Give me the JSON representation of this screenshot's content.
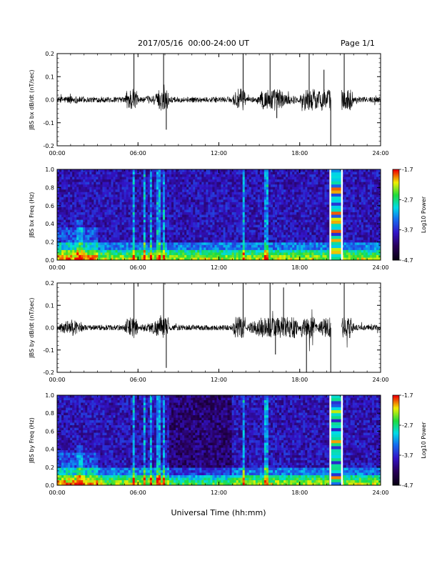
{
  "header": {
    "title": "2017/05/16  00:00-24:00 UT",
    "page": "Page 1/1"
  },
  "x_axis_title": "Universal Time (hh:mm)",
  "chart_data": [
    {
      "type": "line",
      "ylabel": "JBS bx dB/dt (nT/sec)",
      "xlim": [
        0,
        24
      ],
      "ylim": [
        -0.2,
        0.2
      ],
      "x_ticks": [
        "00:00",
        "06:00",
        "12:00",
        "18:00",
        "24:00"
      ],
      "y_ticks": [
        "0.2",
        "0.1",
        "0.0",
        "-0.1",
        "-0.2"
      ],
      "series": [
        {
          "x": [
            0,
            1,
            2,
            3,
            4,
            5,
            5.7,
            6,
            7,
            7.5,
            7.9,
            8.1,
            8.3,
            9,
            10,
            11,
            12,
            13,
            13.8,
            14,
            15,
            15.8,
            16.3,
            17,
            18,
            18.7,
            19.3,
            19.8,
            20.3,
            20.8,
            21.3,
            22,
            23,
            24
          ],
          "y": [
            0.0,
            0.01,
            0.0,
            0.0,
            0.0,
            0.0,
            0.2,
            0.0,
            0.01,
            0.03,
            0.2,
            -0.13,
            0.0,
            0.0,
            0.0,
            0.0,
            0.0,
            0.0,
            0.2,
            0.0,
            0.0,
            0.2,
            -0.08,
            0.02,
            0.0,
            0.2,
            0.03,
            0.13,
            -0.2,
            -0.02,
            0.2,
            0.0,
            0.0,
            0.0
          ]
        }
      ]
    },
    {
      "type": "heatmap",
      "ylabel": "JBS bx Freq (Hz)",
      "xlim": [
        0,
        24
      ],
      "ylim": [
        0.0,
        1.0
      ],
      "x_ticks": [
        "00:00",
        "06:00",
        "12:00",
        "18:00",
        "24:00"
      ],
      "y_ticks": [
        "1.0",
        "0.8",
        "0.6",
        "0.4",
        "0.2",
        "0.0"
      ],
      "colorbar": {
        "label": "Log10 Power",
        "ticks": [
          "-1.7",
          "-2.7",
          "-3.7",
          "-4.7"
        ],
        "range": [
          -4.7,
          -1.7
        ]
      }
    },
    {
      "type": "line",
      "ylabel": "JBS by dB/dt (nT/sec)",
      "xlim": [
        0,
        24
      ],
      "ylim": [
        -0.2,
        0.2
      ],
      "x_ticks": [
        "00:00",
        "06:00",
        "12:00",
        "18:00",
        "24:00"
      ],
      "y_ticks": [
        "0.2",
        "0.1",
        "0.0",
        "-0.1",
        "-0.2"
      ],
      "series": [
        {
          "x": [
            0,
            1,
            2,
            3,
            4,
            5,
            5.7,
            6,
            7,
            7.5,
            7.9,
            8.1,
            8.3,
            9,
            10,
            11,
            12,
            13,
            13.8,
            14,
            15,
            15.8,
            16.2,
            16.8,
            18,
            18.5,
            19.3,
            19.8,
            20.3,
            20.8,
            21.3,
            22,
            23,
            24
          ],
          "y": [
            0.0,
            0.05,
            0.0,
            0.0,
            0.0,
            0.0,
            0.2,
            0.0,
            0.02,
            0.05,
            0.2,
            -0.18,
            0.0,
            0.0,
            0.0,
            0.0,
            0.0,
            0.0,
            0.2,
            0.0,
            0.05,
            0.2,
            -0.12,
            0.18,
            0.0,
            -0.2,
            0.0,
            0.06,
            -0.2,
            -0.03,
            0.2,
            0.0,
            0.0,
            0.0
          ]
        }
      ]
    },
    {
      "type": "heatmap",
      "ylabel": "JBS by Freq (Hz)",
      "xlim": [
        0,
        24
      ],
      "ylim": [
        0.0,
        1.0
      ],
      "x_ticks": [
        "00:00",
        "06:00",
        "12:00",
        "18:00",
        "24:00"
      ],
      "y_ticks": [
        "1.0",
        "0.8",
        "0.6",
        "0.4",
        "0.2",
        "0.0"
      ],
      "colorbar": {
        "label": "Log10 Power",
        "ticks": [
          "-1.7",
          "-2.7",
          "-3.7",
          "-4.7"
        ],
        "range": [
          -4.7,
          -1.7
        ]
      }
    }
  ]
}
